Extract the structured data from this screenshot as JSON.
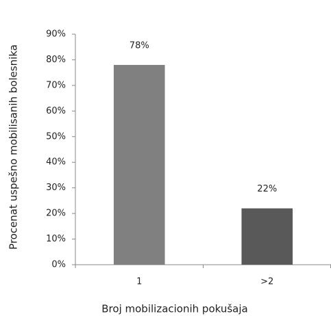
{
  "chart_data": {
    "type": "bar",
    "categories": [
      "1",
      ">2"
    ],
    "values": [
      78,
      22
    ],
    "value_labels": [
      "78%",
      "22%"
    ],
    "colors": [
      "#808080",
      "#595959"
    ],
    "ylim": [
      0,
      90
    ],
    "yticks": [
      {
        "value": 0,
        "label": "0%"
      },
      {
        "value": 10,
        "label": "10%"
      },
      {
        "value": 20,
        "label": "20%"
      },
      {
        "value": 30,
        "label": "30%"
      },
      {
        "value": 40,
        "label": "40%"
      },
      {
        "value": 50,
        "label": "50%"
      },
      {
        "value": 60,
        "label": "60%"
      },
      {
        "value": 70,
        "label": "70%"
      },
      {
        "value": 80,
        "label": "80%"
      },
      {
        "value": 90,
        "label": "90%"
      }
    ],
    "xlabel": "Broj mobilizacionih pokušaja",
    "ylabel": "Procenat uspešno mobilisanih bolesnika",
    "grid": false
  }
}
